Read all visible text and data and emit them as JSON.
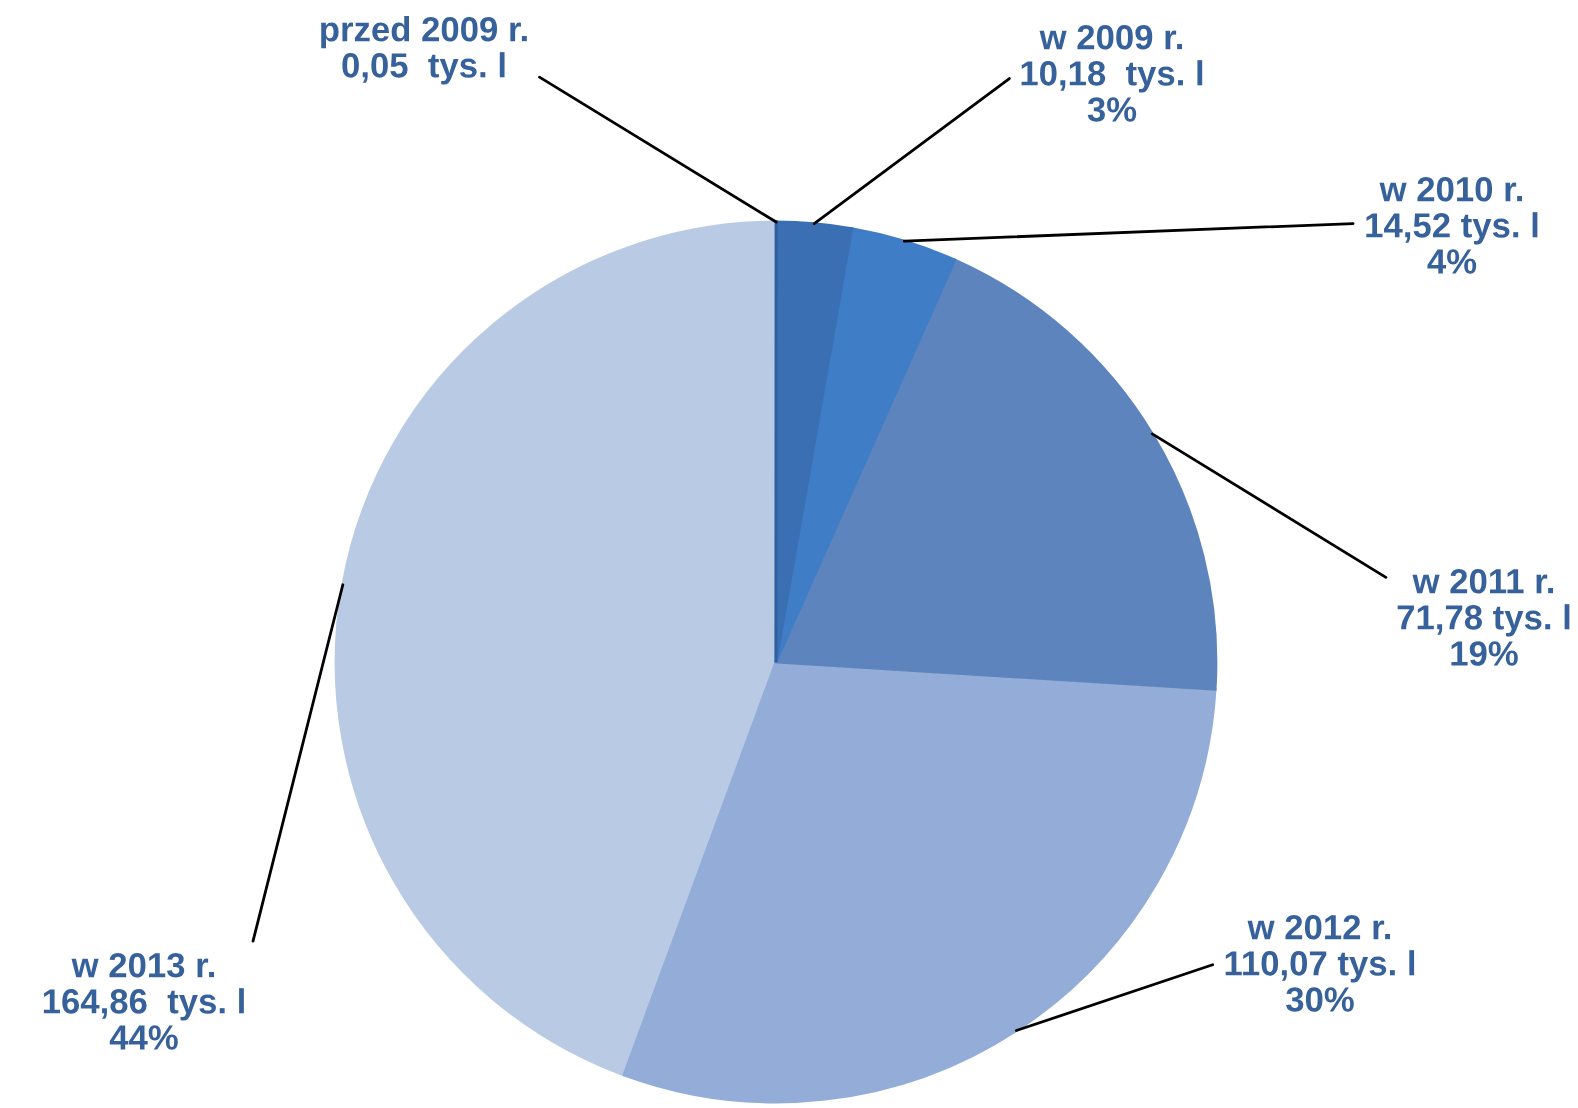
{
  "chart_data": {
    "type": "pie",
    "categories": [
      "przed 2009 r.",
      "w 2009 r.",
      "w 2010 r.",
      "w 2011 r.",
      "w 2012 r.",
      "w 2013 r."
    ],
    "values": [
      0.05,
      10.18,
      14.52,
      71.78,
      110.07,
      164.86
    ],
    "colors": [
      "#2f5f9e",
      "#3a6fb4",
      "#3f7ec6",
      "#5d84bd",
      "#93acd8",
      "#b9cae4"
    ],
    "value_labels": [
      "0,05  tys. l",
      "10,18  tys. l\n3%",
      "14,52 tys. l\n4%",
      "71,78 tys. l\n19%",
      "110,07 tys. l\n30%",
      "164,86  tys. l\n44%"
    ]
  }
}
